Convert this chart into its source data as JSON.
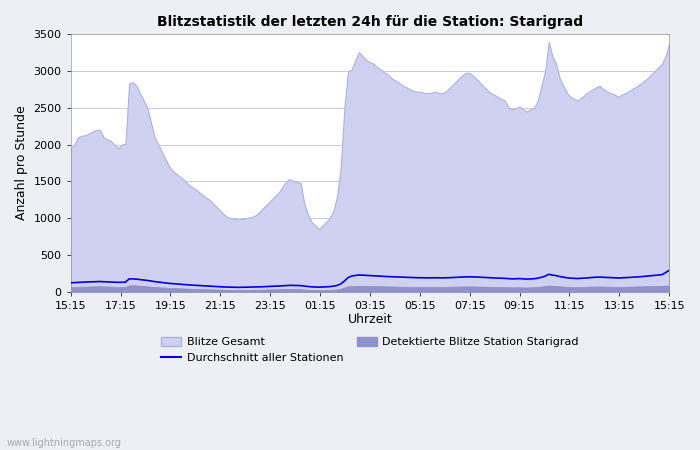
{
  "title": "Blitzstatistik der letzten 24h für die Station: Starigrad",
  "xlabel": "Uhrzeit",
  "ylabel": "Anzahl pro Stunde",
  "xlabels": [
    "15:15",
    "17:15",
    "19:15",
    "21:15",
    "23:15",
    "01:15",
    "03:15",
    "05:15",
    "07:15",
    "09:15",
    "11:15",
    "13:15",
    "15:15"
  ],
  "ylim": [
    0,
    3500
  ],
  "yticks": [
    0,
    500,
    1000,
    1500,
    2000,
    2500,
    3000,
    3500
  ],
  "bg_color": "#eeeef5",
  "plot_bg_color": "#ffffff",
  "area1_color": "#d0d0f0",
  "area1_edge_color": "#b0b0dd",
  "area2_color": "#9090cc",
  "line_color": "#0000dd",
  "legend1": "Blitze Gesamt",
  "legend2": "Durchschnitt aller Stationen",
  "legend3": "Detektierte Blitze Station Starigrad",
  "watermark": "www.lightningmaps.org",
  "blitze_gesamt": [
    1950,
    2000,
    2100,
    2120,
    2130,
    2150,
    2180,
    2200,
    2200,
    2100,
    2070,
    2050,
    2000,
    1950,
    2000,
    2010,
    2830,
    2850,
    2800,
    2700,
    2600,
    2500,
    2300,
    2100,
    2000,
    1900,
    1800,
    1700,
    1640,
    1600,
    1560,
    1520,
    1470,
    1430,
    1400,
    1360,
    1320,
    1280,
    1250,
    1200,
    1150,
    1100,
    1050,
    1010,
    1000,
    990,
    980,
    990,
    1000,
    1010,
    1020,
    1050,
    1100,
    1150,
    1200,
    1250,
    1300,
    1350,
    1420,
    1500,
    1530,
    1500,
    1490,
    1480,
    1200,
    1050,
    950,
    900,
    850,
    900,
    950,
    1000,
    1100,
    1300,
    1700,
    2500,
    3000,
    3020,
    3150,
    3260,
    3200,
    3150,
    3120,
    3100,
    3050,
    3020,
    2980,
    2950,
    2900,
    2870,
    2840,
    2800,
    2780,
    2750,
    2730,
    2720,
    2720,
    2700,
    2700,
    2710,
    2720,
    2700,
    2700,
    2730,
    2780,
    2830,
    2880,
    2930,
    2970,
    2980,
    2950,
    2900,
    2850,
    2800,
    2750,
    2700,
    2680,
    2650,
    2620,
    2600,
    2500,
    2480,
    2500,
    2520,
    2480,
    2450,
    2480,
    2500,
    2600,
    2800,
    3000,
    3400,
    3200,
    3100,
    2900,
    2800,
    2700,
    2650,
    2620,
    2600,
    2640,
    2680,
    2720,
    2750,
    2780,
    2800,
    2750,
    2720,
    2700,
    2680,
    2650,
    2680,
    2700,
    2730,
    2760,
    2790,
    2820,
    2860,
    2900,
    2950,
    3000,
    3050,
    3100,
    3200,
    3380
  ],
  "detektierte": [
    60,
    62,
    65,
    67,
    68,
    70,
    72,
    74,
    75,
    72,
    70,
    68,
    66,
    64,
    65,
    66,
    85,
    87,
    84,
    80,
    76,
    72,
    68,
    64,
    60,
    57,
    54,
    51,
    49,
    47,
    45,
    43,
    41,
    39,
    38,
    36,
    35,
    33,
    32,
    30,
    29,
    27,
    26,
    25,
    24,
    23,
    23,
    23,
    24,
    24,
    25,
    26,
    27,
    28,
    29,
    30,
    31,
    32,
    34,
    36,
    37,
    36,
    35,
    35,
    29,
    26,
    23,
    22,
    21,
    22,
    23,
    24,
    26,
    30,
    40,
    58,
    72,
    74,
    78,
    80,
    79,
    77,
    76,
    75,
    74,
    73,
    72,
    71,
    70,
    69,
    68,
    67,
    67,
    66,
    66,
    65,
    65,
    65,
    65,
    65,
    65,
    65,
    65,
    66,
    67,
    68,
    69,
    70,
    71,
    71,
    71,
    70,
    69,
    68,
    67,
    65,
    64,
    63,
    62,
    61,
    59,
    58,
    59,
    60,
    58,
    57,
    58,
    60,
    64,
    70,
    76,
    84,
    80,
    77,
    72,
    69,
    66,
    64,
    63,
    62,
    64,
    66,
    68,
    69,
    70,
    70,
    69,
    68,
    67,
    66,
    65,
    66,
    67,
    68,
    69,
    70,
    71,
    73,
    74,
    76,
    77,
    78,
    80,
    82,
    84
  ],
  "durchschnitt": [
    120,
    122,
    125,
    128,
    130,
    132,
    134,
    136,
    137,
    134,
    132,
    130,
    128,
    126,
    127,
    128,
    172,
    174,
    170,
    164,
    158,
    152,
    144,
    136,
    130,
    124,
    118,
    112,
    108,
    104,
    100,
    96,
    93,
    89,
    86,
    83,
    80,
    77,
    74,
    72,
    69,
    66,
    63,
    61,
    60,
    59,
    58,
    59,
    60,
    61,
    62,
    63,
    65,
    67,
    69,
    71,
    73,
    76,
    79,
    83,
    85,
    84,
    83,
    82,
    75,
    70,
    65,
    62,
    60,
    62,
    65,
    68,
    74,
    84,
    104,
    144,
    190,
    212,
    220,
    226,
    224,
    221,
    218,
    215,
    212,
    210,
    207,
    204,
    202,
    199,
    197,
    195,
    193,
    191,
    190,
    189,
    188,
    187,
    187,
    188,
    188,
    187,
    187,
    188,
    190,
    192,
    195,
    198,
    200,
    201,
    201,
    199,
    196,
    194,
    191,
    188,
    186,
    184,
    182,
    180,
    176,
    173,
    175,
    177,
    173,
    170,
    172,
    175,
    182,
    195,
    210,
    235,
    225,
    218,
    205,
    196,
    188,
    183,
    180,
    178,
    181,
    185,
    189,
    192,
    196,
    197,
    195,
    192,
    190,
    188,
    185,
    187,
    190,
    193,
    196,
    199,
    202,
    207,
    211,
    216,
    220,
    225,
    230,
    258,
    290
  ]
}
